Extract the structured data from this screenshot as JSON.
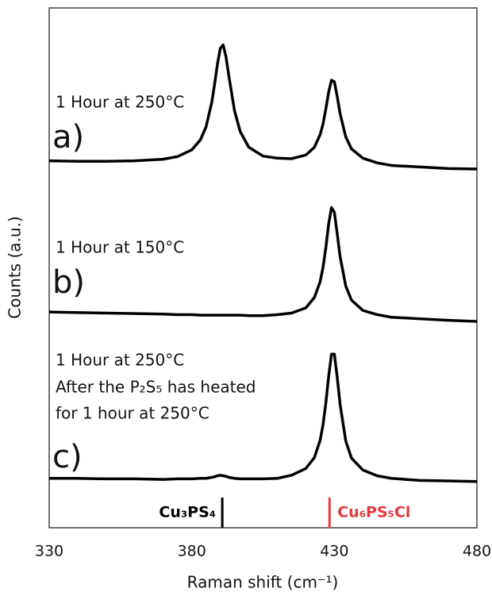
{
  "chart_data": {
    "type": "line",
    "xlabel": "Raman shift (cm⁻¹)",
    "ylabel": "Counts (a.u.)",
    "xlim": [
      330,
      480
    ],
    "xticks": [
      330,
      380,
      430,
      480
    ],
    "ylim": [
      0,
      100
    ],
    "grid": false,
    "x": [
      330,
      340,
      350,
      360,
      370,
      375,
      380,
      383,
      385,
      387,
      388,
      389,
      390,
      391,
      392,
      393,
      395,
      397,
      400,
      405,
      410,
      415,
      420,
      423,
      425,
      426,
      427,
      428,
      429,
      430,
      431,
      432,
      434,
      436,
      440,
      445,
      450,
      460,
      470,
      480
    ],
    "series": [
      {
        "label": "a)",
        "condition": [
          "1 Hour at 250°C"
        ],
        "color": "#000000",
        "values": [
          70.6,
          70.5,
          70.5,
          70.6,
          70.9,
          71.4,
          72.7,
          74.6,
          77.1,
          81.8,
          85.3,
          89.2,
          92.2,
          92.9,
          90.6,
          86.9,
          80.2,
          76.2,
          73.2,
          71.5,
          71.1,
          71.0,
          71.7,
          73.2,
          75.6,
          77.6,
          80.5,
          83.8,
          86.1,
          85.8,
          83.0,
          79.7,
          75.2,
          72.9,
          71.1,
          70.2,
          69.7,
          69.4,
          69.1,
          69.0
        ]
      },
      {
        "label": "b)",
        "condition": [
          "1 Hour at 150°C"
        ],
        "color": "#000000",
        "values": [
          41.5,
          41.4,
          41.3,
          41.2,
          41.1,
          41.0,
          41.0,
          40.9,
          40.9,
          40.9,
          40.9,
          40.9,
          40.9,
          40.9,
          40.9,
          40.9,
          40.9,
          40.9,
          40.8,
          40.8,
          41.0,
          41.3,
          42.3,
          44.3,
          47.3,
          50.0,
          53.8,
          58.4,
          61.6,
          60.7,
          56.6,
          52.2,
          46.5,
          43.8,
          41.8,
          41.0,
          40.5,
          40.2,
          39.9,
          39.7
        ]
      },
      {
        "label": "c)",
        "condition": [
          "1 Hour at 250°C",
          "After the P₂S₅ has heated",
          "for 1 hour at 250°C"
        ],
        "color": "#000000",
        "values": [
          9.5,
          9.5,
          9.4,
          9.4,
          9.3,
          9.4,
          9.4,
          9.5,
          9.5,
          9.7,
          9.8,
          10.0,
          10.1,
          10.0,
          9.9,
          9.7,
          9.5,
          9.4,
          9.4,
          9.4,
          9.5,
          10.1,
          11.4,
          13.5,
          16.8,
          19.7,
          23.9,
          29.1,
          33.4,
          33.4,
          29.0,
          23.8,
          16.7,
          13.4,
          11.1,
          10.0,
          9.5,
          9.1,
          9.0,
          8.9
        ]
      }
    ],
    "references": [
      {
        "label": "Cu₃PS₄",
        "x": 390.7,
        "color": "#000000"
      },
      {
        "label": "Cu₆PS₅Cl",
        "x": 428.3,
        "color": "#e8383d"
      }
    ]
  }
}
